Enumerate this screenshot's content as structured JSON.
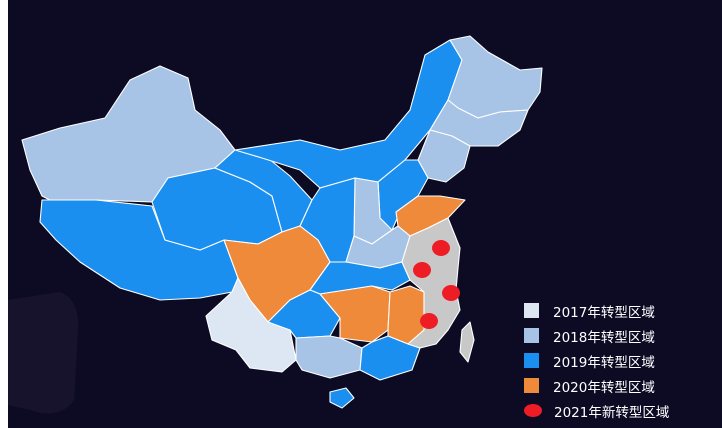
{
  "colors": {
    "c2017": "#dde6f3",
    "c2018": "#a7c3e5",
    "c2019": "#1a8ff0",
    "c2020": "#ee8a3a",
    "c2021": "#ee1c25",
    "background": "#0d0b24",
    "other": "#c8c8c8"
  },
  "legend": [
    {
      "label": "2017年转型区域",
      "color": "#dde6f3",
      "shape": "square"
    },
    {
      "label": "2018年转型区域",
      "color": "#a7c3e5",
      "shape": "square"
    },
    {
      "label": "2019年转型区域",
      "color": "#1a8ff0",
      "shape": "square"
    },
    {
      "label": "2020年转型区域",
      "color": "#ee8a3a",
      "shape": "square"
    },
    {
      "label": "2021年新转型区域",
      "color": "#ee1c25",
      "shape": "circle"
    }
  ]
}
